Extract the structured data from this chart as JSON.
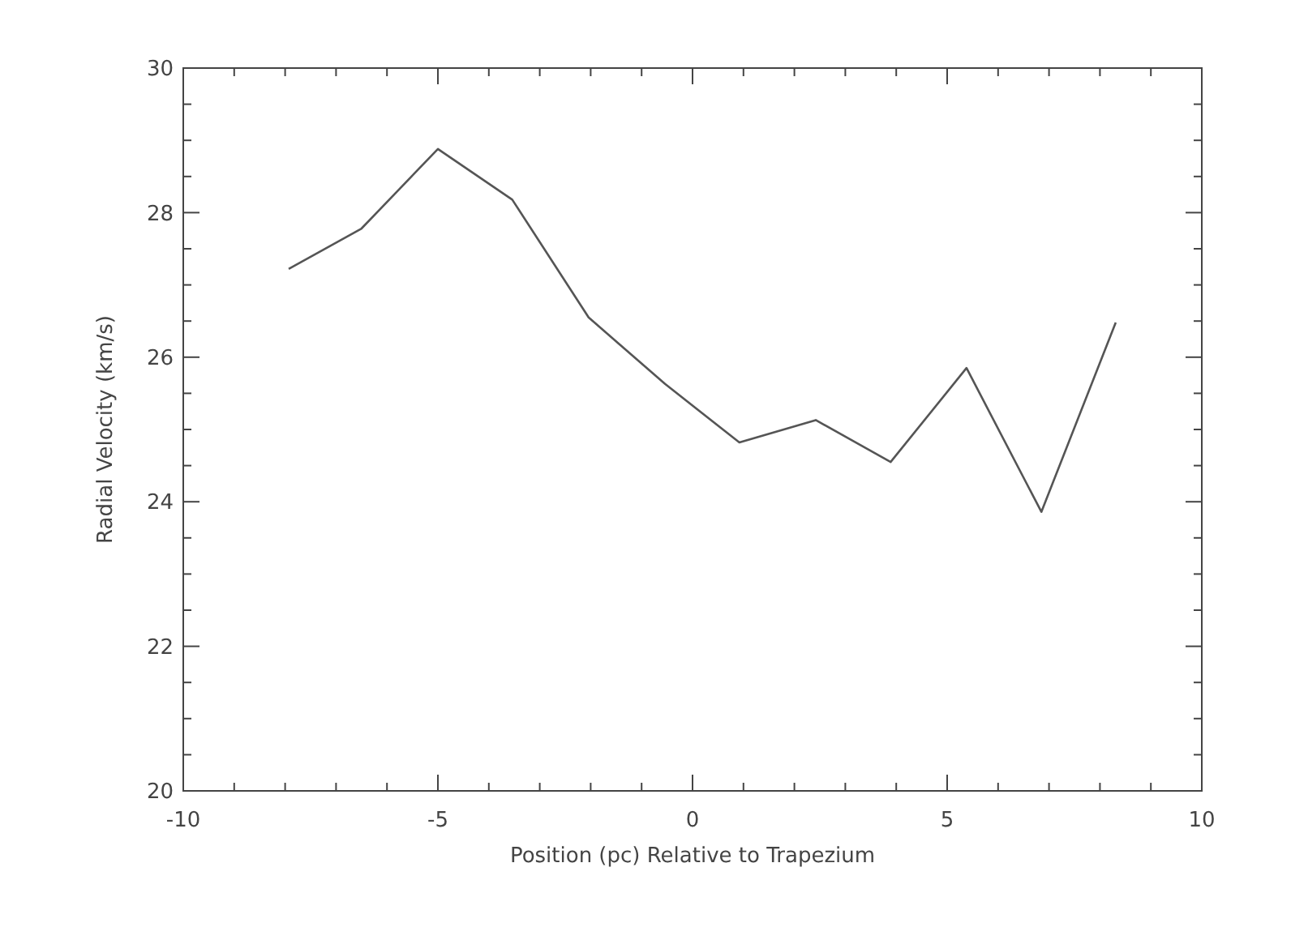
{
  "chart_data": {
    "type": "line",
    "xlabel": "Position (pc) Relative to Trapezium",
    "ylabel": "Radial Velocity (km/s)",
    "x": [
      -7.93,
      -6.5,
      -5.0,
      -3.54,
      -2.04,
      -0.54,
      0.92,
      2.42,
      3.89,
      5.38,
      6.85,
      8.31
    ],
    "series": [
      {
        "color": "#555555",
        "values": [
          27.22,
          27.78,
          28.88,
          28.18,
          26.55,
          25.63,
          24.82,
          25.13,
          24.55,
          25.85,
          23.86,
          26.48
        ]
      }
    ],
    "xlim": [
      -10,
      10
    ],
    "ylim": [
      20,
      30
    ],
    "xticks": [
      -10,
      {
        "value": -9,
        "label": null
      },
      {
        "value": -8,
        "label": null
      },
      {
        "value": -7,
        "label": null
      },
      {
        "value": -6,
        "label": null
      },
      -5,
      {
        "value": -4,
        "label": null
      },
      {
        "value": -3,
        "label": null
      },
      {
        "value": -2,
        "label": null
      },
      {
        "value": -1,
        "label": null
      },
      0,
      {
        "value": 1,
        "label": null
      },
      {
        "value": 2,
        "label": null
      },
      {
        "value": 3,
        "label": null
      },
      {
        "value": 4,
        "label": null
      },
      5,
      {
        "value": 6,
        "label": null
      },
      {
        "value": 7,
        "label": null
      },
      {
        "value": 8,
        "label": null
      },
      {
        "value": 9,
        "label": null
      },
      10
    ],
    "yticks": [
      20,
      {
        "value": 20.5,
        "label": null
      },
      {
        "value": 21,
        "label": null
      },
      {
        "value": 21.5,
        "label": null
      },
      22,
      {
        "value": 22.5,
        "label": null
      },
      {
        "value": 23,
        "label": null
      },
      {
        "value": 23.5,
        "label": null
      },
      24,
      {
        "value": 24.5,
        "label": null
      },
      {
        "value": 25,
        "label": null
      },
      {
        "value": 25.5,
        "label": null
      },
      26,
      {
        "value": 26.5,
        "label": null
      },
      {
        "value": 27,
        "label": null
      },
      {
        "value": 27.5,
        "label": null
      },
      28,
      {
        "value": 28.5,
        "label": null
      },
      {
        "value": 29,
        "label": null
      },
      {
        "value": 29.5,
        "label": null
      },
      30
    ],
    "grid": false,
    "marker": "none",
    "line_style": "solid"
  }
}
